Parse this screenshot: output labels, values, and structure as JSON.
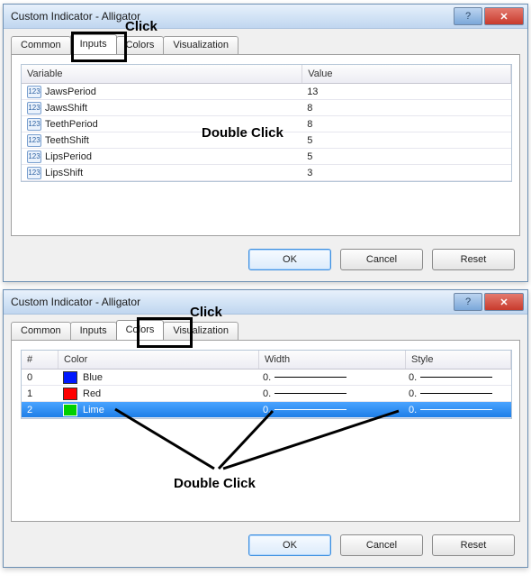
{
  "dialog1": {
    "title": "Custom Indicator - Alligator",
    "tabs": [
      "Common",
      "Inputs",
      "Colors",
      "Visualization"
    ],
    "selected_tab": "Inputs",
    "headers": {
      "variable": "Variable",
      "value": "Value"
    },
    "rows": [
      {
        "variable": "JawsPeriod",
        "value": "13"
      },
      {
        "variable": "JawsShift",
        "value": "8"
      },
      {
        "variable": "TeethPeriod",
        "value": "8"
      },
      {
        "variable": "TeethShift",
        "value": "5"
      },
      {
        "variable": "LipsPeriod",
        "value": "5"
      },
      {
        "variable": "LipsShift",
        "value": "3"
      }
    ],
    "buttons": {
      "ok": "OK",
      "cancel": "Cancel",
      "reset": "Reset"
    },
    "annot": {
      "click": "Click",
      "double_click": "Double Click"
    }
  },
  "dialog2": {
    "title": "Custom Indicator - Alligator",
    "tabs": [
      "Common",
      "Inputs",
      "Colors",
      "Visualization"
    ],
    "selected_tab": "Colors",
    "headers": {
      "idx": "#",
      "color": "Color",
      "width": "Width",
      "style": "Style"
    },
    "rows": [
      {
        "idx": "0",
        "name": "Blue",
        "hex": "#0018ff",
        "width": "0.",
        "style": "0.",
        "selected": false
      },
      {
        "idx": "1",
        "name": "Red",
        "hex": "#ff0000",
        "width": "0.",
        "style": "0.",
        "selected": false
      },
      {
        "idx": "2",
        "name": "Lime",
        "hex": "#00d000",
        "width": "0.",
        "style": "0.",
        "selected": true
      }
    ],
    "buttons": {
      "ok": "OK",
      "cancel": "Cancel",
      "reset": "Reset"
    },
    "annot": {
      "click": "Click",
      "double_click": "Double Click"
    }
  }
}
